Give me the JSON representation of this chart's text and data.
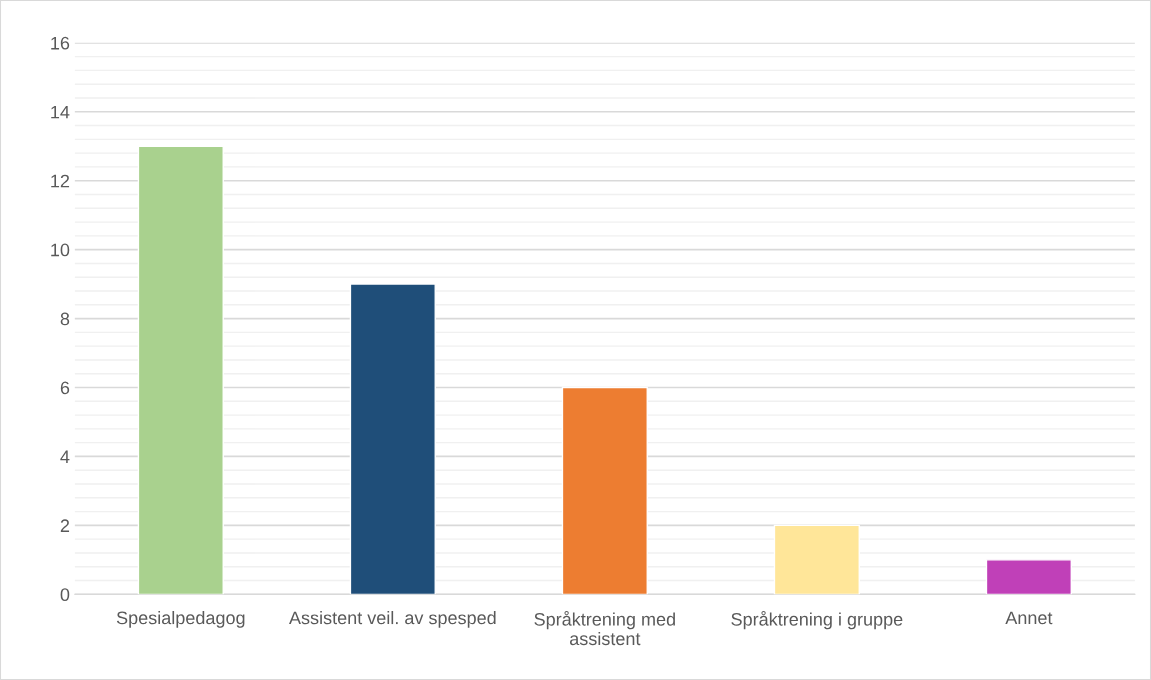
{
  "chart_data": {
    "type": "bar",
    "categories": [
      "Spesialpedagog",
      "Assistent veil. av spesped",
      "Språktrening med assistent",
      "Språktrening i gruppe",
      "Annet"
    ],
    "values": [
      13,
      9,
      6,
      2,
      1
    ],
    "colors": [
      "#a9d18e",
      "#1f4e79",
      "#ed7d31",
      "#ffe699",
      "#c040b8"
    ],
    "ylim": [
      0,
      16
    ],
    "yticks": [
      0,
      2,
      4,
      6,
      8,
      10,
      12,
      14,
      16
    ],
    "grid": "y"
  }
}
